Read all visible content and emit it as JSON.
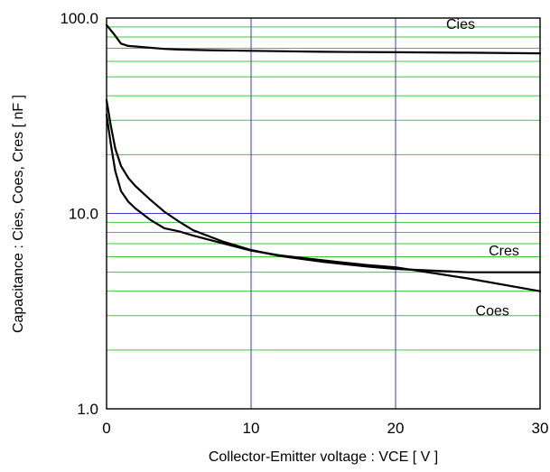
{
  "chart_data": {
    "type": "line",
    "xlabel": "Collector-Emitter voltage : VCE [ V ]",
    "ylabel": "Capacitance : Cies, Coes, Cres [ nF ]",
    "xlim": [
      0,
      30
    ],
    "ylim": [
      1,
      100
    ],
    "y_scale": "log",
    "grid": true,
    "x_ticks": [
      {
        "value": 0,
        "label": "0"
      },
      {
        "value": 10,
        "label": "10"
      },
      {
        "value": 20,
        "label": "20"
      },
      {
        "value": 30,
        "label": "30"
      }
    ],
    "y_ticks": [
      {
        "value": 1,
        "label": "1.0"
      },
      {
        "value": 10,
        "label": "10.0"
      },
      {
        "value": 100,
        "label": "100.0"
      }
    ],
    "colors": {
      "major_grid": "#3a3ad0",
      "minor_grid": "#3cc83c",
      "series": "#000000"
    },
    "series": [
      {
        "name": "Cies",
        "label_at": [
          24.5,
          88
        ],
        "x": [
          0,
          0.5,
          1,
          1.5,
          2,
          3,
          4,
          5,
          7,
          10,
          15,
          20,
          25,
          30
        ],
        "y": [
          92,
          83,
          74,
          72,
          71.5,
          70.5,
          69.5,
          69,
          68.5,
          68,
          67.2,
          66.8,
          66.5,
          66
        ]
      },
      {
        "name": "Cres",
        "label_at": [
          27.5,
          6.1
        ],
        "x": [
          0,
          0.3,
          0.6,
          1,
          1.5,
          2,
          3,
          4,
          5,
          6,
          8,
          10,
          12,
          15,
          18,
          20,
          25,
          30
        ],
        "y": [
          38,
          28,
          21.5,
          17.5,
          15.2,
          13.8,
          11.8,
          10.2,
          9.1,
          8.2,
          7.2,
          6.5,
          6.05,
          5.65,
          5.35,
          5.2,
          5.0,
          5.0
        ]
      },
      {
        "name": "Coes",
        "label_at": [
          26.7,
          3.0
        ],
        "x": [
          0,
          0.3,
          0.6,
          1,
          1.5,
          2,
          3,
          4,
          5,
          6,
          8,
          10,
          12,
          15,
          18,
          20,
          25,
          30
        ],
        "y": [
          32,
          22.5,
          16.5,
          13.0,
          11.5,
          10.6,
          9.3,
          8.4,
          8.1,
          7.7,
          7.05,
          6.45,
          6.1,
          5.75,
          5.45,
          5.3,
          4.65,
          4.0
        ]
      }
    ]
  }
}
